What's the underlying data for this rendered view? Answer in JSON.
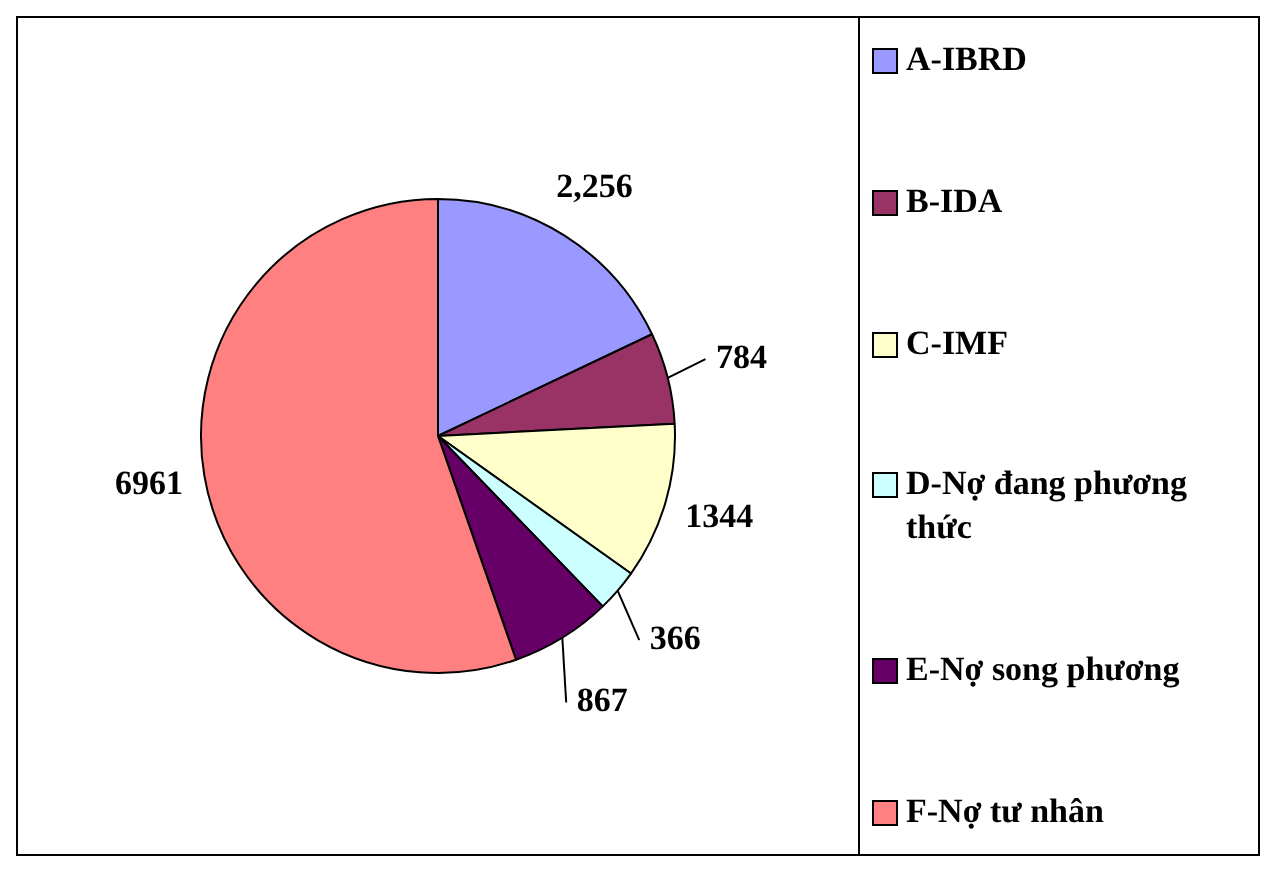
{
  "chart_data": {
    "type": "pie",
    "categories": [
      "A-IBRD",
      "B-IDA",
      "C-IMF",
      "D-Nợ đang phương thức",
      "E-Nợ song phương",
      "F-Nợ tư nhân"
    ],
    "values": [
      2256,
      784,
      1344,
      366,
      867,
      6961
    ],
    "colors": [
      "#9999ff",
      "#993366",
      "#ffffcc",
      "#ccffff",
      "#660066",
      "#ff8080"
    ],
    "value_labels": [
      "2,256",
      "784",
      "1344",
      "366",
      "867",
      "6961"
    ],
    "legend": "right"
  }
}
